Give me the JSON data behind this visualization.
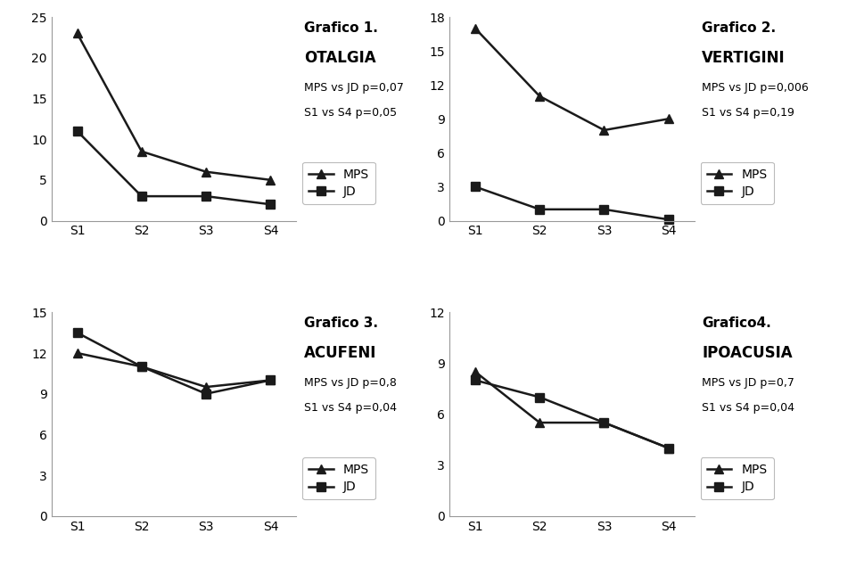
{
  "categories": [
    "S1",
    "S2",
    "S3",
    "S4"
  ],
  "plots": [
    {
      "title_line1": "Grafico 1.",
      "title_line2": "OTALGIA",
      "subtitle1": "MPS vs JD p=0,07",
      "subtitle2": "S1 vs S4 p=0,05",
      "MPS": [
        23,
        8.5,
        6.0,
        5.0
      ],
      "JD": [
        11,
        3.0,
        3.0,
        2.0
      ],
      "ylim": [
        0,
        25
      ],
      "yticks": [
        0,
        5,
        10,
        15,
        20,
        25
      ]
    },
    {
      "title_line1": "Grafico 2.",
      "title_line2": "VERTIGINI",
      "subtitle1": "MPS vs JD p=0,006",
      "subtitle2": "S1 vs S4 p=0,19",
      "MPS": [
        17,
        11,
        8.0,
        9.0
      ],
      "JD": [
        3.0,
        1.0,
        1.0,
        0.1
      ],
      "ylim": [
        0,
        18
      ],
      "yticks": [
        0,
        3,
        6,
        9,
        12,
        15,
        18
      ]
    },
    {
      "title_line1": "Grafico 3.",
      "title_line2": "ACUFENI",
      "subtitle1": "MPS vs JD p=0,8",
      "subtitle2": "S1 vs S4 p=0,04",
      "MPS": [
        12.0,
        11.0,
        9.5,
        10.0
      ],
      "JD": [
        13.5,
        11.0,
        9.0,
        10.0
      ],
      "ylim": [
        0,
        15
      ],
      "yticks": [
        0,
        3,
        6,
        9,
        12,
        15
      ]
    },
    {
      "title_line1": "Grafico4.",
      "title_line2": "IPOACUSIA",
      "subtitle1": "MPS vs JD p=0,7",
      "subtitle2": "S1 vs S4 p=0,04",
      "MPS": [
        8.5,
        5.5,
        5.5,
        4.0
      ],
      "JD": [
        8.0,
        7.0,
        5.5,
        4.0
      ],
      "ylim": [
        0,
        12
      ],
      "yticks": [
        0,
        3,
        6,
        9,
        12
      ]
    }
  ],
  "line_color": "#1a1a1a",
  "mps_marker": "^",
  "jd_marker": "s",
  "marker_size": 7,
  "line_width": 1.8,
  "background_color": "#ffffff",
  "font_family": "DejaVu Sans",
  "title1_fontsize": 11,
  "title2_fontsize": 12,
  "subtitle_fontsize": 9,
  "tick_fontsize": 10,
  "legend_fontsize": 10
}
